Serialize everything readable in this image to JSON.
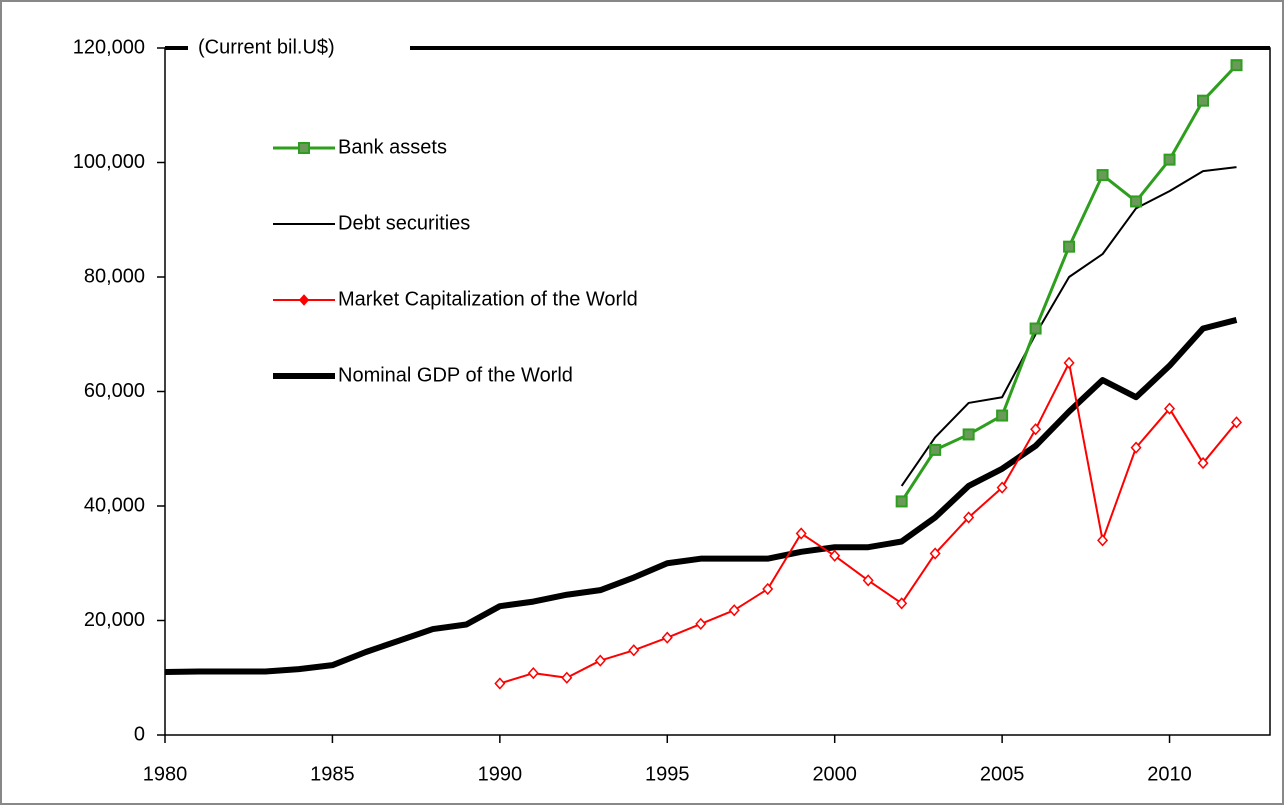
{
  "chart_data": {
    "type": "line",
    "ylabel": "(Current bil.U$)",
    "x": [
      1980,
      1981,
      1982,
      1983,
      1984,
      1985,
      1986,
      1987,
      1988,
      1989,
      1990,
      1991,
      1992,
      1993,
      1994,
      1995,
      1996,
      1997,
      1998,
      1999,
      2000,
      2001,
      2002,
      2003,
      2004,
      2005,
      2006,
      2007,
      2008,
      2009,
      2010,
      2011,
      2012
    ],
    "xlim": [
      1980,
      2013
    ],
    "xticks": [
      1980,
      1985,
      1990,
      1995,
      2000,
      2005,
      2010
    ],
    "ylim": [
      0,
      120000
    ],
    "yticks": [
      {
        "value": 0,
        "label": "0"
      },
      {
        "value": 20000,
        "label": "20,000"
      },
      {
        "value": 40000,
        "label": "40,000"
      },
      {
        "value": 60000,
        "label": "60,000"
      },
      {
        "value": 80000,
        "label": "80,000"
      },
      {
        "value": 100000,
        "label": "100,000"
      },
      {
        "value": 120000,
        "label": "120,000"
      }
    ],
    "legend": "upper left",
    "series": [
      {
        "name": "Bank assets",
        "color": "#2e9e1e",
        "marker": "square",
        "linewidth": 3,
        "values": [
          null,
          null,
          null,
          null,
          null,
          null,
          null,
          null,
          null,
          null,
          null,
          null,
          null,
          null,
          null,
          null,
          null,
          null,
          null,
          null,
          null,
          null,
          40800,
          49800,
          52500,
          55800,
          71000,
          85300,
          97800,
          93200,
          100500,
          110800,
          117000
        ]
      },
      {
        "name": "Debt securities",
        "color": "#000000",
        "marker": "none",
        "linewidth": 2,
        "values": [
          null,
          null,
          null,
          null,
          null,
          null,
          null,
          null,
          null,
          null,
          null,
          null,
          null,
          null,
          null,
          null,
          null,
          null,
          null,
          null,
          null,
          null,
          43500,
          52000,
          58000,
          59000,
          70000,
          80000,
          84000,
          92000,
          95000,
          98500,
          99200
        ]
      },
      {
        "name": "Market Capitalization of the World",
        "color": "#ff0000",
        "marker": "diamond",
        "linewidth": 2,
        "values": [
          null,
          null,
          null,
          null,
          null,
          null,
          null,
          null,
          null,
          null,
          9000,
          10800,
          10000,
          13000,
          14800,
          17000,
          19400,
          21800,
          25500,
          35200,
          31300,
          27000,
          23000,
          31700,
          38000,
          43200,
          53400,
          65000,
          34000,
          50200,
          57000,
          47500,
          54600
        ]
      },
      {
        "name": "Nominal GDP of the World",
        "color": "#000000",
        "marker": "none",
        "linewidth": 6,
        "values": [
          11000,
          11100,
          11100,
          11100,
          11500,
          12200,
          14500,
          16500,
          18500,
          19300,
          22500,
          23300,
          24500,
          25300,
          27500,
          30000,
          30800,
          30800,
          30800,
          32000,
          32800,
          32800,
          33800,
          38000,
          43500,
          46500,
          50500,
          56500,
          62000,
          59000,
          64500,
          71000,
          72500
        ]
      }
    ]
  }
}
